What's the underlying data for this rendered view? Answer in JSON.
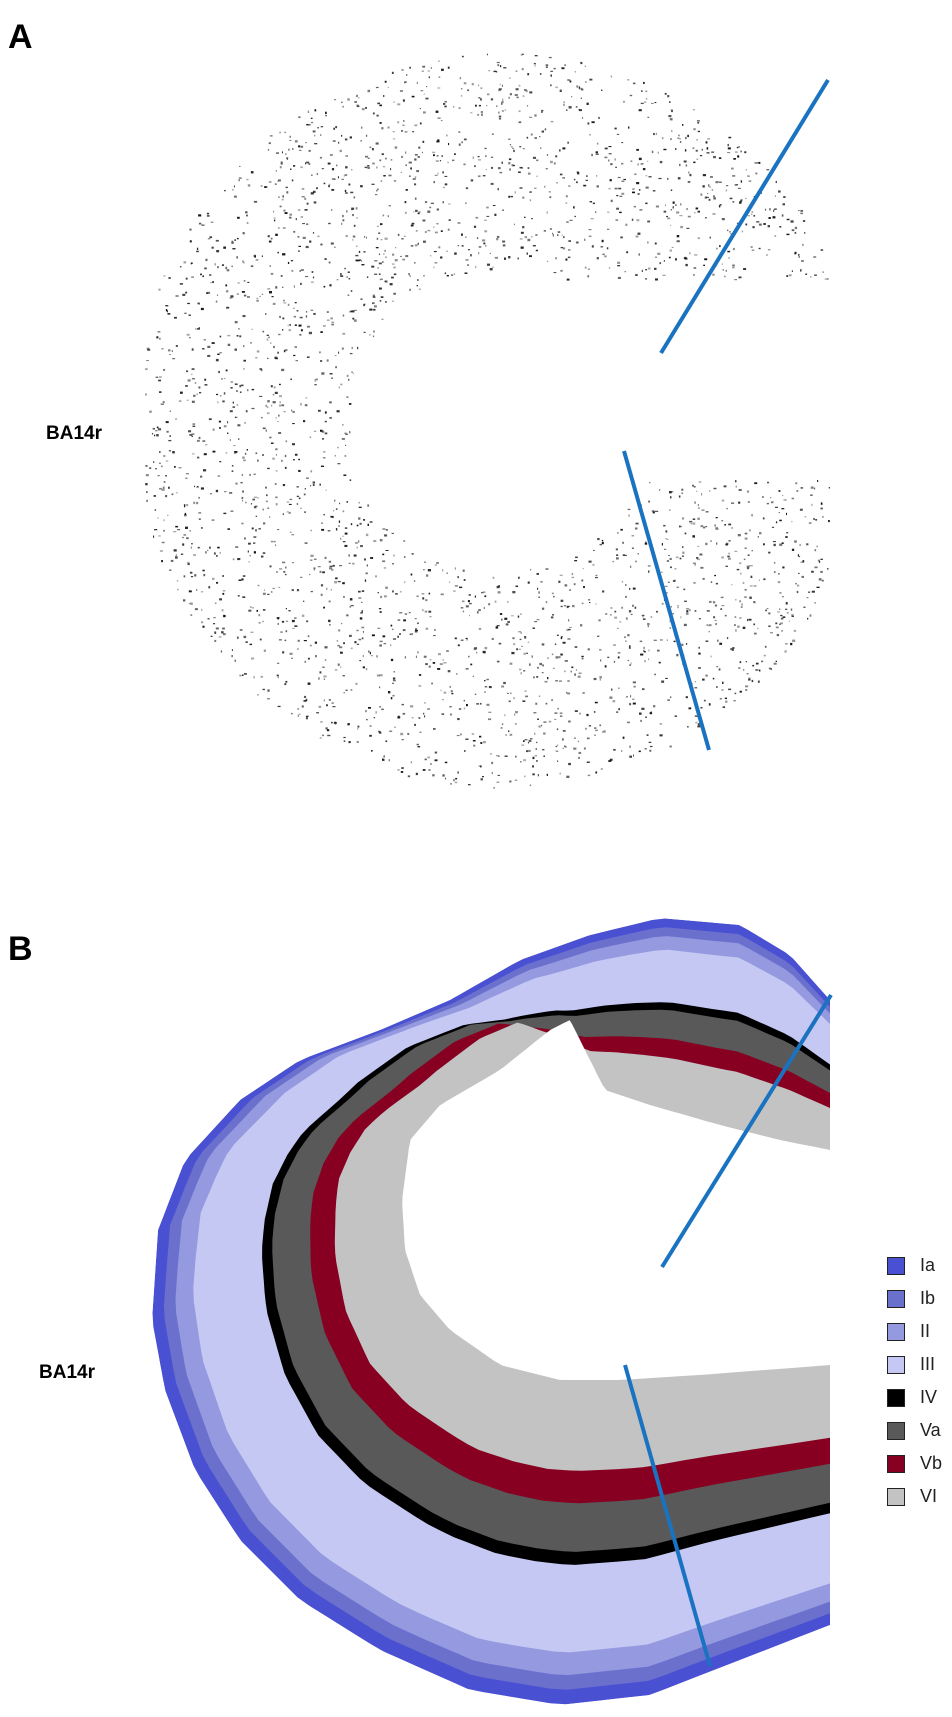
{
  "panels": {
    "a": {
      "letter": "A",
      "region_label": "BA14r"
    },
    "b": {
      "letter": "B",
      "region_label": "BA14r"
    }
  },
  "legend": [
    {
      "label": "Ia",
      "color": "#4a50d2"
    },
    {
      "label": "Ib",
      "color": "#6a70cc"
    },
    {
      "label": "II",
      "color": "#9499e0"
    },
    {
      "label": "III",
      "color": "#c5c8f3"
    },
    {
      "label": "IV",
      "color": "#000000"
    },
    {
      "label": "Va",
      "color": "#595959"
    },
    {
      "label": "Vb",
      "color": "#870022"
    },
    {
      "label": "VI",
      "color": "#c3c3c3"
    }
  ],
  "boundary_line_color": "#1a73c0"
}
